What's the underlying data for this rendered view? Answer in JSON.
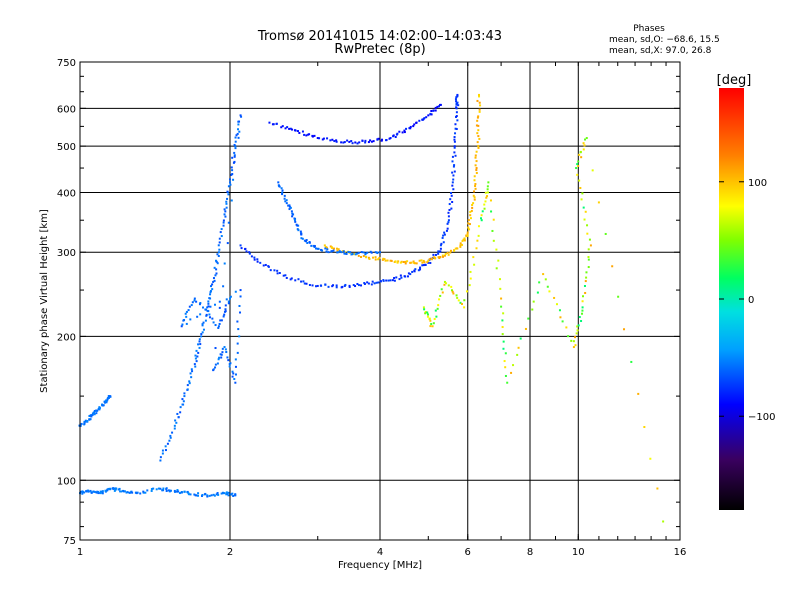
{
  "chart_data": {
    "type": "scatter",
    "title_line1": "Tromsø 20141015 14:02:00–14:03:43",
    "title_line2": "RwPretec (8p)",
    "stats": {
      "heading": "Phases",
      "line1": "mean, sd,O: −68.6, 15.5",
      "line2": "mean, sd,X:  97.0, 26.8"
    },
    "xlabel": "Frequency [MHz]",
    "ylabel": "Stationary phase Virtual Height [km]",
    "x_scale": "log",
    "y_scale": "log",
    "xlim": [
      1,
      16
    ],
    "ylim": [
      75,
      750
    ],
    "x_ticks": [
      {
        "value": 1,
        "label": "1"
      },
      {
        "value": 2,
        "label": "2"
      },
      {
        "value": 4,
        "label": "4"
      },
      {
        "value": 6,
        "label": "6"
      },
      {
        "value": 8,
        "label": "8"
      },
      {
        "value": 10,
        "label": "10"
      },
      {
        "value": 16,
        "label": "16"
      }
    ],
    "x_gridlines": [
      2,
      4,
      6,
      8,
      10
    ],
    "y_ticks": [
      {
        "value": 75,
        "label": "75"
      },
      {
        "value": 100,
        "label": "100"
      },
      {
        "value": 200,
        "label": "200"
      },
      {
        "value": 300,
        "label": "300"
      },
      {
        "value": 400,
        "label": "400"
      },
      {
        "value": 500,
        "label": "500"
      },
      {
        "value": 600,
        "label": "600"
      },
      {
        "value": 750,
        "label": "750"
      }
    ],
    "y_gridlines": [
      100,
      200,
      300,
      400,
      500,
      600
    ],
    "colorbar": {
      "label": "[deg]",
      "range": [
        -180,
        180
      ],
      "ticks": [
        {
          "value": 100,
          "label": "100"
        },
        {
          "value": 0,
          "label": "0"
        },
        {
          "value": -100,
          "label": "−100"
        }
      ]
    },
    "series": [
      {
        "name": "E-region echoes",
        "phase": -55,
        "spread": 15,
        "points": [
          [
            1.0,
            94
          ],
          [
            1.05,
            95
          ],
          [
            1.1,
            94
          ],
          [
            1.15,
            96
          ],
          [
            1.22,
            95
          ],
          [
            1.3,
            94
          ],
          [
            1.45,
            96
          ],
          [
            1.55,
            95
          ],
          [
            1.65,
            94
          ],
          [
            1.8,
            93
          ],
          [
            1.95,
            94
          ],
          [
            2.05,
            93
          ]
        ]
      },
      {
        "name": "sporadic low trace",
        "phase": -55,
        "spread": 12,
        "points": [
          [
            1.0,
            130
          ],
          [
            1.03,
            133
          ],
          [
            1.06,
            137
          ],
          [
            1.09,
            141
          ],
          [
            1.12,
            146
          ],
          [
            1.15,
            150
          ]
        ]
      },
      {
        "name": "F-region spread cloud",
        "phase": -60,
        "spread": 18,
        "points": [
          [
            1.45,
            110
          ],
          [
            1.55,
            130
          ],
          [
            1.62,
            150
          ],
          [
            1.7,
            175
          ],
          [
            1.75,
            200
          ],
          [
            1.8,
            230
          ],
          [
            1.85,
            260
          ],
          [
            1.9,
            300
          ],
          [
            1.95,
            360
          ],
          [
            2.0,
            420
          ],
          [
            2.05,
            500
          ],
          [
            2.1,
            580
          ],
          [
            1.85,
            170
          ],
          [
            1.95,
            190
          ],
          [
            2.05,
            160
          ],
          [
            2.1,
            250
          ],
          [
            1.6,
            210
          ],
          [
            1.7,
            240
          ],
          [
            1.9,
            210
          ],
          [
            2.0,
            240
          ]
        ]
      },
      {
        "name": "O-mode F2 trace",
        "phase": -75,
        "spread": 12,
        "points": [
          [
            2.1,
            310
          ],
          [
            2.3,
            285
          ],
          [
            2.6,
            265
          ],
          [
            3.0,
            255
          ],
          [
            3.4,
            255
          ],
          [
            3.8,
            258
          ],
          [
            4.2,
            262
          ],
          [
            4.6,
            270
          ],
          [
            5.0,
            285
          ],
          [
            5.3,
            305
          ],
          [
            5.5,
            350
          ],
          [
            5.6,
            420
          ],
          [
            5.65,
            500
          ],
          [
            5.7,
            600
          ],
          [
            5.72,
            640
          ]
        ]
      },
      {
        "name": "X-mode F2 trace",
        "phase": 100,
        "spread": 25,
        "points": [
          [
            3.1,
            310
          ],
          [
            3.4,
            300
          ],
          [
            3.8,
            292
          ],
          [
            4.2,
            288
          ],
          [
            4.6,
            285
          ],
          [
            5.0,
            288
          ],
          [
            5.4,
            295
          ],
          [
            5.8,
            310
          ],
          [
            6.0,
            330
          ],
          [
            6.15,
            380
          ],
          [
            6.25,
            450
          ],
          [
            6.3,
            540
          ],
          [
            6.32,
            640
          ]
        ]
      },
      {
        "name": "oblique trace",
        "phase": -60,
        "spread": 15,
        "points": [
          [
            2.5,
            420
          ],
          [
            2.6,
            380
          ],
          [
            2.7,
            350
          ],
          [
            2.8,
            320
          ],
          [
            3.0,
            305
          ],
          [
            3.3,
            300
          ],
          [
            3.6,
            298
          ],
          [
            4.0,
            300
          ]
        ]
      },
      {
        "name": "multiple echo",
        "phase": -85,
        "spread": 15,
        "points": [
          [
            2.4,
            560
          ],
          [
            2.7,
            540
          ],
          [
            3.0,
            520
          ],
          [
            3.4,
            510
          ],
          [
            3.8,
            510
          ],
          [
            4.2,
            520
          ],
          [
            4.6,
            545
          ],
          [
            5.0,
            580
          ],
          [
            5.3,
            610
          ]
        ]
      },
      {
        "name": "scattered interference",
        "phase": 60,
        "spread": 100,
        "points": [
          [
            4.9,
            230
          ],
          [
            5.1,
            210
          ],
          [
            5.4,
            260
          ],
          [
            5.9,
            230
          ],
          [
            6.4,
            350
          ],
          [
            6.6,
            420
          ],
          [
            7.0,
            240
          ],
          [
            7.2,
            160
          ],
          [
            8.5,
            270
          ],
          [
            9.8,
            190
          ],
          [
            10.2,
            230
          ],
          [
            10.6,
            310
          ],
          [
            9.9,
            450
          ],
          [
            10.4,
            520
          ],
          [
            14.8,
            82
          ]
        ]
      }
    ]
  }
}
